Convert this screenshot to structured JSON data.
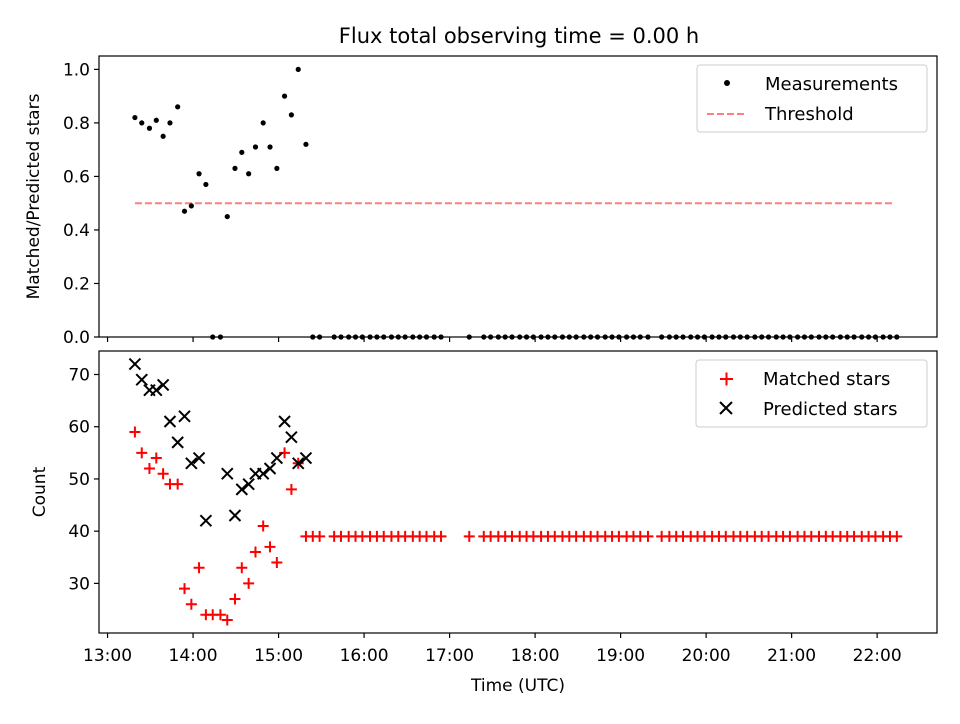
{
  "chart_data": {
    "title": "Flux total observing time = 0.00 h",
    "xlabel": "Time (UTC)",
    "x_unit": "hours UTC",
    "xlim": [
      12.9,
      22.7
    ],
    "x_ticks": [
      {
        "value": 13,
        "label": "13:00"
      },
      {
        "value": 14,
        "label": "14:00"
      },
      {
        "value": 15,
        "label": "15:00"
      },
      {
        "value": 16,
        "label": "16:00"
      },
      {
        "value": 17,
        "label": "17:00"
      },
      {
        "value": 18,
        "label": "18:00"
      },
      {
        "value": 19,
        "label": "19:00"
      },
      {
        "value": 20,
        "label": "20:00"
      },
      {
        "value": 21,
        "label": "21:00"
      },
      {
        "value": 22,
        "label": "22:00"
      }
    ],
    "top_panel": {
      "type": "scatter",
      "ylabel": "Matched/Predicted stars",
      "ylim": [
        0,
        1.05
      ],
      "y_ticks": [
        "0.0",
        "0.2",
        "0.4",
        "0.6",
        "0.8",
        "1.0"
      ],
      "legend_position": "top-right",
      "measurements": {
        "name": "Measurements",
        "color": "#000000",
        "x": [
          13.32,
          13.4,
          13.49,
          13.57,
          13.65,
          13.73,
          13.82,
          13.9,
          13.98,
          14.07,
          14.15,
          14.23,
          14.32,
          14.4,
          14.49,
          14.57,
          14.65,
          14.73,
          14.82,
          14.9,
          14.98,
          15.07,
          15.15,
          15.23,
          15.32,
          15.4,
          15.48,
          15.65,
          15.73,
          15.82,
          15.9,
          15.98,
          16.07,
          16.15,
          16.23,
          16.32,
          16.4,
          16.48,
          16.57,
          16.65,
          16.73,
          16.82,
          16.9,
          17.23,
          17.4,
          17.48,
          17.57,
          17.65,
          17.73,
          17.82,
          17.9,
          17.98,
          18.07,
          18.15,
          18.23,
          18.32,
          18.4,
          18.48,
          18.57,
          18.65,
          18.73,
          18.82,
          18.9,
          18.98,
          19.07,
          19.15,
          19.23,
          19.32,
          19.48,
          19.57,
          19.65,
          19.73,
          19.82,
          19.9,
          19.98,
          20.07,
          20.15,
          20.23,
          20.32,
          20.4,
          20.48,
          20.57,
          20.65,
          20.73,
          20.82,
          20.9,
          20.98,
          21.07,
          21.15,
          21.23,
          21.32,
          21.4,
          21.48,
          21.57,
          21.65,
          21.73,
          21.82,
          21.9,
          21.98,
          22.07,
          22.15,
          22.23
        ],
        "y": [
          0.82,
          0.8,
          0.78,
          0.81,
          0.75,
          0.8,
          0.86,
          0.47,
          0.49,
          0.61,
          0.57,
          0.0,
          0.0,
          0.45,
          0.63,
          0.69,
          0.61,
          0.71,
          0.8,
          0.71,
          0.63,
          0.9,
          0.83,
          1.0,
          0.72,
          0.0,
          0.0,
          0.0,
          0.0,
          0.0,
          0.0,
          0.0,
          0.0,
          0.0,
          0.0,
          0.0,
          0.0,
          0.0,
          0.0,
          0.0,
          0.0,
          0.0,
          0.0,
          0.0,
          0.0,
          0.0,
          0.0,
          0.0,
          0.0,
          0.0,
          0.0,
          0.0,
          0.0,
          0.0,
          0.0,
          0.0,
          0.0,
          0.0,
          0.0,
          0.0,
          0.0,
          0.0,
          0.0,
          0.0,
          0.0,
          0.0,
          0.0,
          0.0,
          0.0,
          0.0,
          0.0,
          0.0,
          0.0,
          0.0,
          0.0,
          0.0,
          0.0,
          0.0,
          0.0,
          0.0,
          0.0,
          0.0,
          0.0,
          0.0,
          0.0,
          0.0,
          0.0,
          0.0,
          0.0,
          0.0,
          0.0,
          0.0,
          0.0,
          0.0,
          0.0,
          0.0,
          0.0,
          0.0,
          0.0,
          0.0,
          0.0,
          0.0
        ]
      },
      "threshold": {
        "name": "Threshold",
        "color": "#ff7f7f",
        "value": 0.5,
        "x_range": [
          13.32,
          22.2
        ]
      }
    },
    "bottom_panel": {
      "type": "scatter",
      "ylabel": "Count",
      "ylim": [
        20.5,
        74.5
      ],
      "y_ticks": [
        "30",
        "40",
        "50",
        "60",
        "70"
      ],
      "legend_position": "top-right",
      "matched": {
        "name": "Matched stars",
        "color": "#ff0000",
        "x": [
          13.32,
          13.4,
          13.49,
          13.57,
          13.65,
          13.73,
          13.82,
          13.9,
          13.98,
          14.07,
          14.15,
          14.23,
          14.32,
          14.4,
          14.49,
          14.57,
          14.65,
          14.73,
          14.82,
          14.9,
          14.98,
          15.07,
          15.15,
          15.23,
          15.32,
          15.4,
          15.48,
          15.65,
          15.73,
          15.82,
          15.9,
          15.98,
          16.07,
          16.15,
          16.23,
          16.32,
          16.4,
          16.48,
          16.57,
          16.65,
          16.73,
          16.82,
          16.9,
          17.23,
          17.4,
          17.48,
          17.57,
          17.65,
          17.73,
          17.82,
          17.9,
          17.98,
          18.07,
          18.15,
          18.23,
          18.32,
          18.4,
          18.48,
          18.57,
          18.65,
          18.73,
          18.82,
          18.9,
          18.98,
          19.07,
          19.15,
          19.23,
          19.32,
          19.48,
          19.57,
          19.65,
          19.73,
          19.82,
          19.9,
          19.98,
          20.07,
          20.15,
          20.23,
          20.32,
          20.4,
          20.48,
          20.57,
          20.65,
          20.73,
          20.82,
          20.9,
          20.98,
          21.07,
          21.15,
          21.23,
          21.32,
          21.4,
          21.48,
          21.57,
          21.65,
          21.73,
          21.82,
          21.9,
          21.98,
          22.07,
          22.15,
          22.23
        ],
        "y": [
          59,
          55,
          52,
          54,
          51,
          49,
          49,
          29,
          26,
          33,
          24,
          24,
          24,
          23,
          27,
          33,
          30,
          36,
          41,
          37,
          34,
          55,
          48,
          53,
          39,
          39,
          39,
          39,
          39,
          39,
          39,
          39,
          39,
          39,
          39,
          39,
          39,
          39,
          39,
          39,
          39,
          39,
          39,
          39,
          39,
          39,
          39,
          39,
          39,
          39,
          39,
          39,
          39,
          39,
          39,
          39,
          39,
          39,
          39,
          39,
          39,
          39,
          39,
          39,
          39,
          39,
          39,
          39,
          39,
          39,
          39,
          39,
          39,
          39,
          39,
          39,
          39,
          39,
          39,
          39,
          39,
          39,
          39,
          39,
          39,
          39,
          39,
          39,
          39,
          39,
          39,
          39,
          39,
          39,
          39,
          39,
          39,
          39,
          39,
          39,
          39,
          39
        ]
      },
      "predicted": {
        "name": "Predicted stars",
        "color": "#000000",
        "x": [
          13.32,
          13.4,
          13.49,
          13.57,
          13.65,
          13.73,
          13.82,
          13.9,
          13.98,
          14.07,
          14.15,
          14.4,
          14.49,
          14.57,
          14.65,
          14.73,
          14.82,
          14.9,
          14.98,
          15.07,
          15.15,
          15.23,
          15.32
        ],
        "y": [
          72,
          69,
          67,
          67,
          68,
          61,
          57,
          62,
          53,
          54,
          42,
          51,
          43,
          48,
          49,
          51,
          51,
          52,
          54,
          61,
          58,
          53,
          54
        ]
      }
    }
  }
}
